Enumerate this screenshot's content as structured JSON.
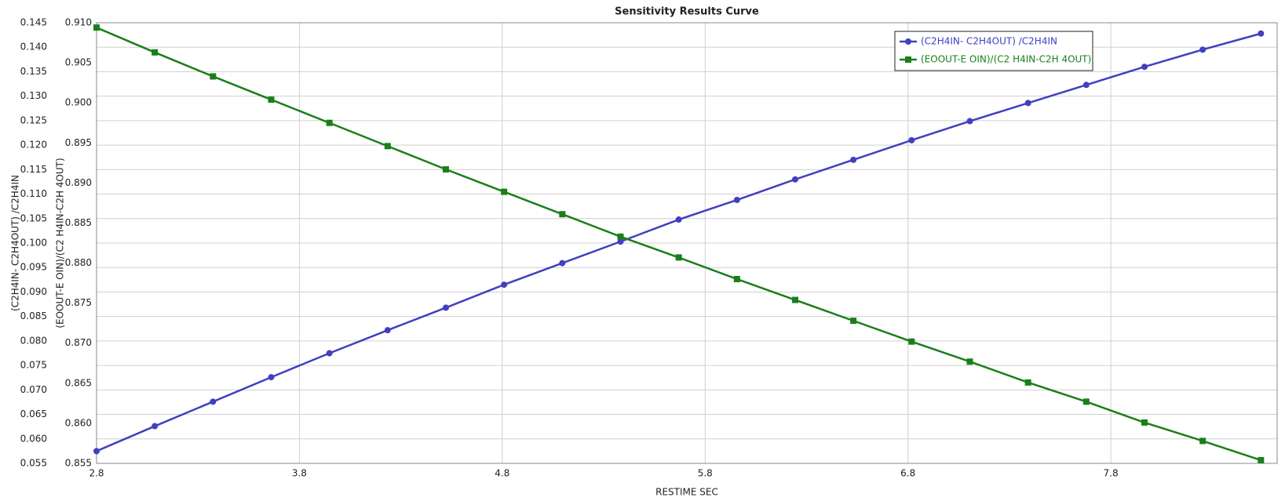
{
  "chart_data": {
    "type": "line",
    "title": "Sensitivity Results Curve",
    "x_label": "RESTIME SEC",
    "y_label": "(C2H4IN- C2H4OUT) /C2H4IN",
    "y2_label": "(EOOUT-E OIN)/(C2 H4IN-C2H 4OUT)",
    "x": [
      2.8,
      3.087,
      3.374,
      3.661,
      3.948,
      4.235,
      4.522,
      4.809,
      5.096,
      5.383,
      5.67,
      5.957,
      6.244,
      6.531,
      6.818,
      7.105,
      7.392,
      7.679,
      7.966,
      8.253,
      8.54
    ],
    "series": [
      {
        "name": "(C2H4IN- C2H4OUT) /C2H4IN",
        "color": "#4040c0",
        "marker": "circle",
        "values": [
          0.0575,
          0.0626,
          0.0676,
          0.0726,
          0.0775,
          0.0822,
          0.0868,
          0.0915,
          0.0959,
          0.1003,
          0.1048,
          0.1088,
          0.113,
          0.117,
          0.121,
          0.1249,
          0.1286,
          0.1323,
          0.136,
          0.1395,
          0.1428
        ]
      },
      {
        "name": "(EOOUT-E OIN)/(C2 H4IN-C2H 4OUT)",
        "color": "#1a7f1a",
        "marker": "square",
        "axis": "y2",
        "values": [
          0.9094,
          0.9063,
          0.9033,
          0.9004,
          0.8975,
          0.8946,
          0.8917,
          0.8889,
          0.8861,
          0.8833,
          0.8807,
          0.878,
          0.8754,
          0.8728,
          0.8702,
          0.8677,
          0.8651,
          0.8627,
          0.8601,
          0.8578,
          0.8554
        ]
      }
    ],
    "xlim": [
      2.8,
      8.62
    ],
    "xticks": [
      2.8,
      3.8,
      4.8,
      5.8,
      6.8,
      7.8
    ],
    "ylim": [
      0.055,
      0.145
    ],
    "yticks": [
      0.055,
      {
        "value": 0.06,
        "label": "0.060"
      },
      0.065,
      {
        "value": 0.07,
        "label": "0.070"
      },
      0.075,
      {
        "value": 0.08,
        "label": "0.080"
      },
      0.085,
      {
        "value": 0.09,
        "label": "0.090"
      },
      0.095,
      {
        "value": 0.1,
        "label": "0.100"
      },
      0.105,
      {
        "value": 0.11,
        "label": "0.110"
      },
      0.115,
      {
        "value": 0.12,
        "label": "0.120"
      },
      0.125,
      {
        "value": 0.13,
        "label": "0.130"
      },
      0.135,
      {
        "value": 0.14,
        "label": "0.140"
      },
      0.145
    ],
    "y2lim": [
      0.855,
      0.91
    ],
    "y2ticks": [
      0.855,
      {
        "value": 0.86,
        "label": "0.860"
      },
      0.865,
      {
        "value": 0.87,
        "label": "0.870"
      },
      0.875,
      {
        "value": 0.88,
        "label": "0.880"
      },
      0.885,
      {
        "value": 0.89,
        "label": "0.890"
      },
      0.895,
      {
        "value": 0.9,
        "label": "0.900"
      },
      0.905,
      {
        "value": 0.91,
        "label": "0.910"
      }
    ],
    "grid": true,
    "legend": "top-right"
  }
}
